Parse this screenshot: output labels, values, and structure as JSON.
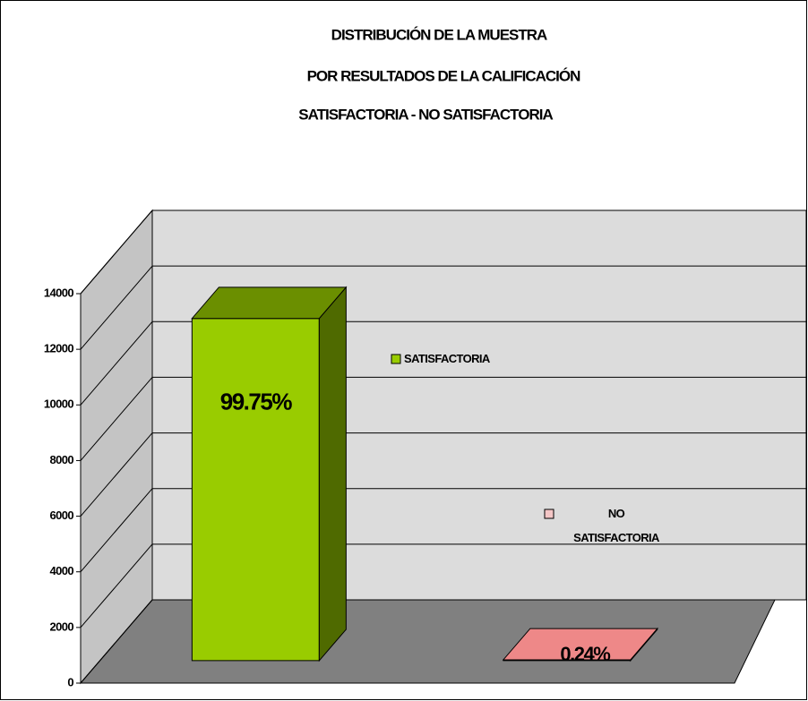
{
  "chart_data": {
    "type": "bar3d",
    "title_lines": [
      "DISTRIBUCIÓN DE LA MUESTRA",
      "POR RESULTADOS DE LA CALIFICACIÓN",
      "SATISFACTORIA - NO SATISFACTORIA"
    ],
    "series": [
      {
        "name": "SATISFACTORIA",
        "color": "#99cc00",
        "values": [
          12300
        ],
        "value_labels": [
          "99.75%"
        ]
      },
      {
        "name": "NO SATISFACTORIA",
        "color": "#cc0000",
        "values": [
          30
        ],
        "value_labels": [
          "0.24%"
        ]
      }
    ],
    "ylim": [
      0,
      14000
    ],
    "yticks": [
      0,
      2000,
      4000,
      6000,
      8000,
      10000,
      12000,
      14000
    ],
    "grid": true
  }
}
